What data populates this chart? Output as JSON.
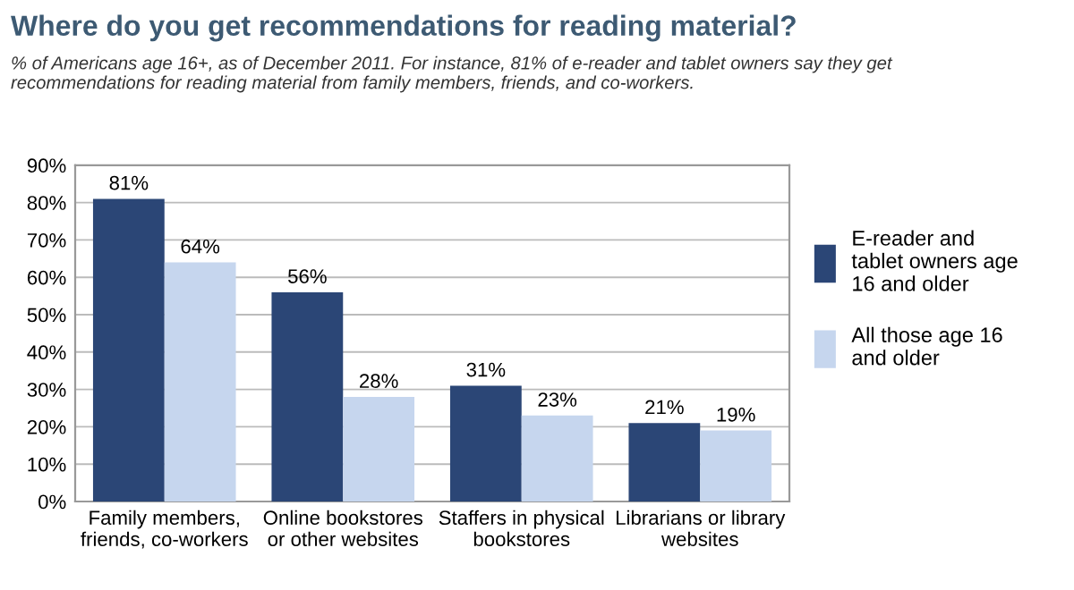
{
  "chart_data": {
    "type": "bar",
    "title": "Where do you get recommendations for reading material?",
    "subtitle": "% of Americans age 16+, as of December 2011. For instance, 81% of e-reader and tablet owners say they get\nrecommendations for reading material from family members, friends, and co-workers.",
    "categories": [
      "Family members,\nfriends, co-workers",
      "Online bookstores\nor other websites",
      "Staffers in physical\nbookstores",
      "Librarians or library\nwebsites"
    ],
    "series": [
      {
        "name": "E-reader and\ntablet owners age\n16 and older",
        "color": "#2b4676",
        "values": [
          81,
          56,
          31,
          21
        ],
        "value_labels": [
          "81%",
          "56%",
          "31%",
          "21%"
        ]
      },
      {
        "name": "All those age 16\nand older",
        "color": "#c6d6ee",
        "values": [
          64,
          28,
          23,
          19
        ],
        "value_labels": [
          "64%",
          "28%",
          "23%",
          "19%"
        ]
      }
    ],
    "ylim": [
      0,
      90
    ],
    "yticks": [
      {
        "value": 0,
        "label": "0%"
      },
      {
        "value": 10,
        "label": "10%"
      },
      {
        "value": 20,
        "label": "20%"
      },
      {
        "value": 30,
        "label": "30%"
      },
      {
        "value": 40,
        "label": "40%"
      },
      {
        "value": 50,
        "label": "50%"
      },
      {
        "value": 60,
        "label": "60%"
      },
      {
        "value": 70,
        "label": "70%"
      },
      {
        "value": 80,
        "label": "80%"
      },
      {
        "value": 90,
        "label": "90%"
      }
    ],
    "grid": "y",
    "legend": "right"
  }
}
